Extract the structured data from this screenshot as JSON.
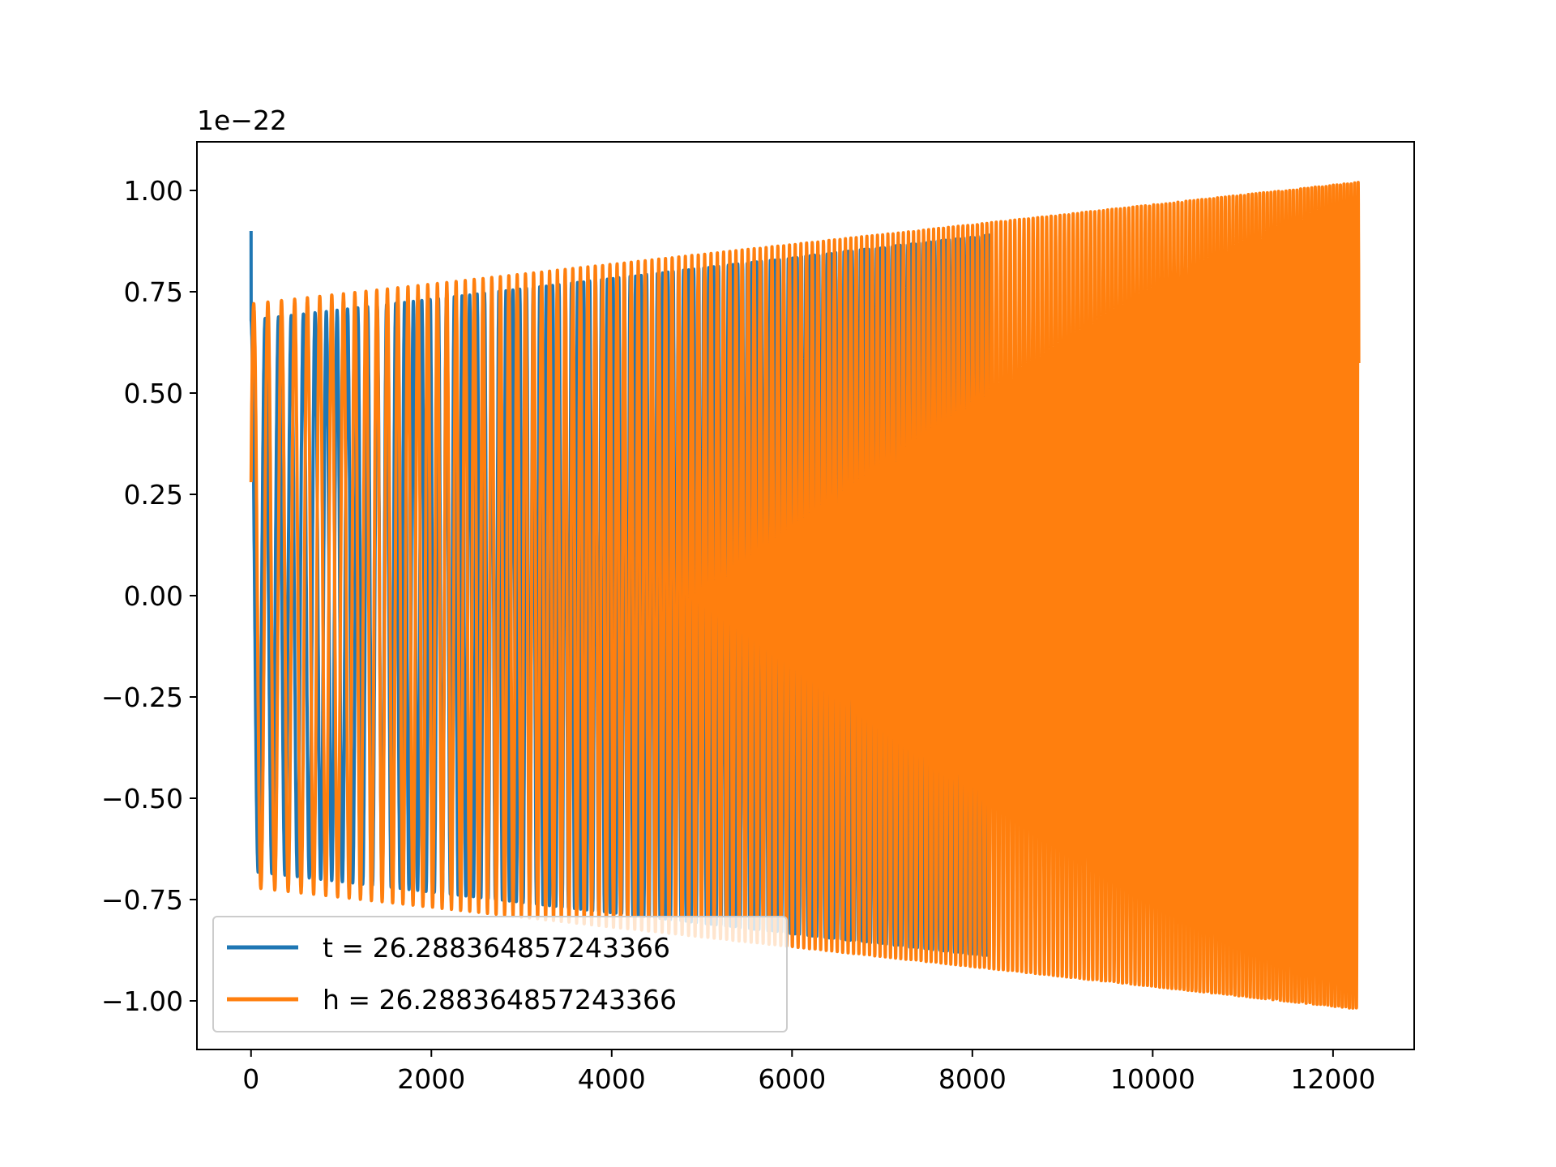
{
  "chart_data": {
    "type": "line",
    "title": "",
    "xlabel": "",
    "ylabel": "",
    "y_offset_label": "1e−22",
    "xlim": [
      -600,
      12900
    ],
    "ylim": [
      -1.12,
      1.12
    ],
    "xticks": [
      0,
      2000,
      4000,
      6000,
      8000,
      10000,
      12000
    ],
    "xtick_labels": [
      "0",
      "2000",
      "4000",
      "6000",
      "8000",
      "10000",
      "12000"
    ],
    "yticks": [
      1.0,
      0.75,
      0.5,
      0.25,
      0.0,
      -0.25,
      -0.5,
      -0.75,
      -1.0
    ],
    "ytick_labels": [
      "1.00",
      "0.75",
      "0.50",
      "0.25",
      "0.00",
      "−0.25",
      "−0.50",
      "−0.75",
      "−1.00"
    ],
    "grid": false,
    "legend_position": "lower-left",
    "series": [
      {
        "name": "t = 26.288364857243366",
        "color": "#1f77b4",
        "x_start": 0,
        "x_end": 8190,
        "start_value": 0.9,
        "amp_start": 0.68,
        "amp_end": 0.89,
        "freq_start": 0.0062,
        "freq_end": 0.0256,
        "phase": 1.57
      },
      {
        "name": "h = 26.288364857243366",
        "color": "#ff7f0e",
        "x_start": 0,
        "x_end": 12285,
        "start_value": 0.28,
        "amp_start": 0.72,
        "amp_end": 1.02,
        "freq_start": 0.0062,
        "freq_end": 0.0256,
        "phase": 0.4
      }
    ]
  }
}
